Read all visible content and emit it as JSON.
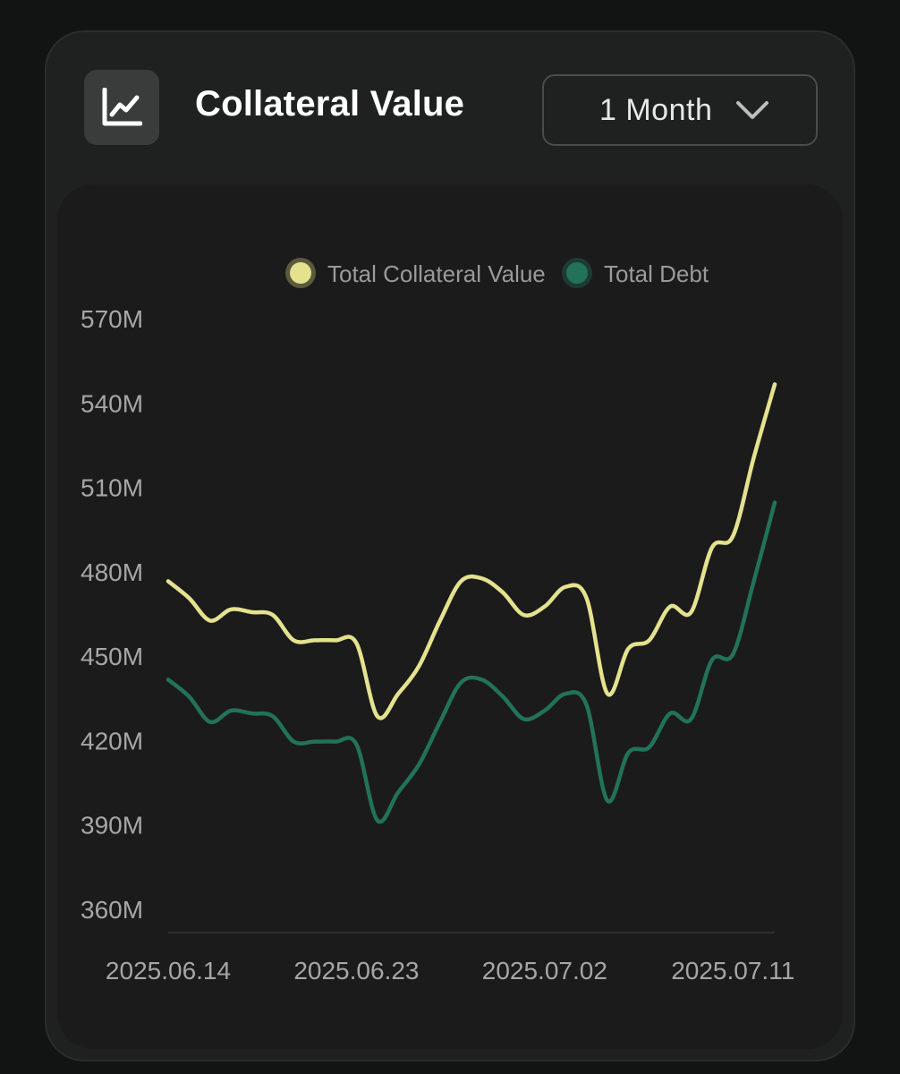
{
  "header": {
    "title": "Collateral Value",
    "icon": "chart-line-icon",
    "range_selector": {
      "selected": "1 Month",
      "icon": "chevron-down-icon"
    }
  },
  "colors": {
    "collateral": "#e5e28f",
    "debt": "#22725a",
    "axis_text": "#a6a6a6",
    "legend_text": "#9a9a9a"
  },
  "chart_data": {
    "type": "line",
    "title": "",
    "xlabel": "",
    "ylabel": "",
    "ylim": [
      360,
      570
    ],
    "y_ticks": [
      360,
      390,
      420,
      450,
      480,
      510,
      540,
      570
    ],
    "y_tick_labels": [
      "360M",
      "390M",
      "420M",
      "450M",
      "480M",
      "510M",
      "540M",
      "570M"
    ],
    "x_tick_labels": [
      "2025.06.14",
      "2025.06.23",
      "2025.07.02",
      "2025.07.11"
    ],
    "legend": {
      "position": "top-center"
    },
    "x": [
      "2025.06.14",
      "2025.06.15",
      "2025.06.16",
      "2025.06.17",
      "2025.06.18",
      "2025.06.19",
      "2025.06.20",
      "2025.06.21",
      "2025.06.22",
      "2025.06.23",
      "2025.06.24",
      "2025.06.25",
      "2025.06.26",
      "2025.06.27",
      "2025.06.28",
      "2025.06.29",
      "2025.06.30",
      "2025.07.01",
      "2025.07.02",
      "2025.07.03",
      "2025.07.04",
      "2025.07.05",
      "2025.07.06",
      "2025.07.07",
      "2025.07.08",
      "2025.07.09",
      "2025.07.10",
      "2025.07.11",
      "2025.07.12",
      "2025.07.13"
    ],
    "series": [
      {
        "name": "Total Collateral Value",
        "values": [
          476,
          470,
          462,
          466,
          465,
          464,
          455,
          455,
          455,
          454,
          428,
          436,
          446,
          462,
          476,
          477,
          472,
          464,
          467,
          474,
          470,
          436,
          452,
          455,
          467,
          465,
          488,
          492,
          520,
          546
        ]
      },
      {
        "name": "Total Debt",
        "values": [
          441,
          435,
          426,
          430,
          429,
          428,
          419,
          419,
          419,
          418,
          391,
          401,
          411,
          426,
          440,
          441,
          435,
          427,
          430,
          436,
          432,
          398,
          415,
          417,
          429,
          427,
          448,
          450,
          476,
          504
        ]
      }
    ]
  }
}
